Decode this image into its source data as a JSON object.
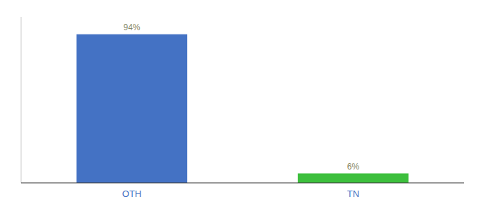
{
  "chart_data": {
    "type": "bar",
    "categories": [
      "OTH",
      "TN"
    ],
    "values": [
      94,
      6
    ],
    "value_labels": [
      "94%",
      "6%"
    ],
    "colors": [
      "#4472c4",
      "#3dbf3d"
    ],
    "ylim": [
      0,
      105
    ],
    "data_labels": true,
    "tick_labels": "x"
  }
}
